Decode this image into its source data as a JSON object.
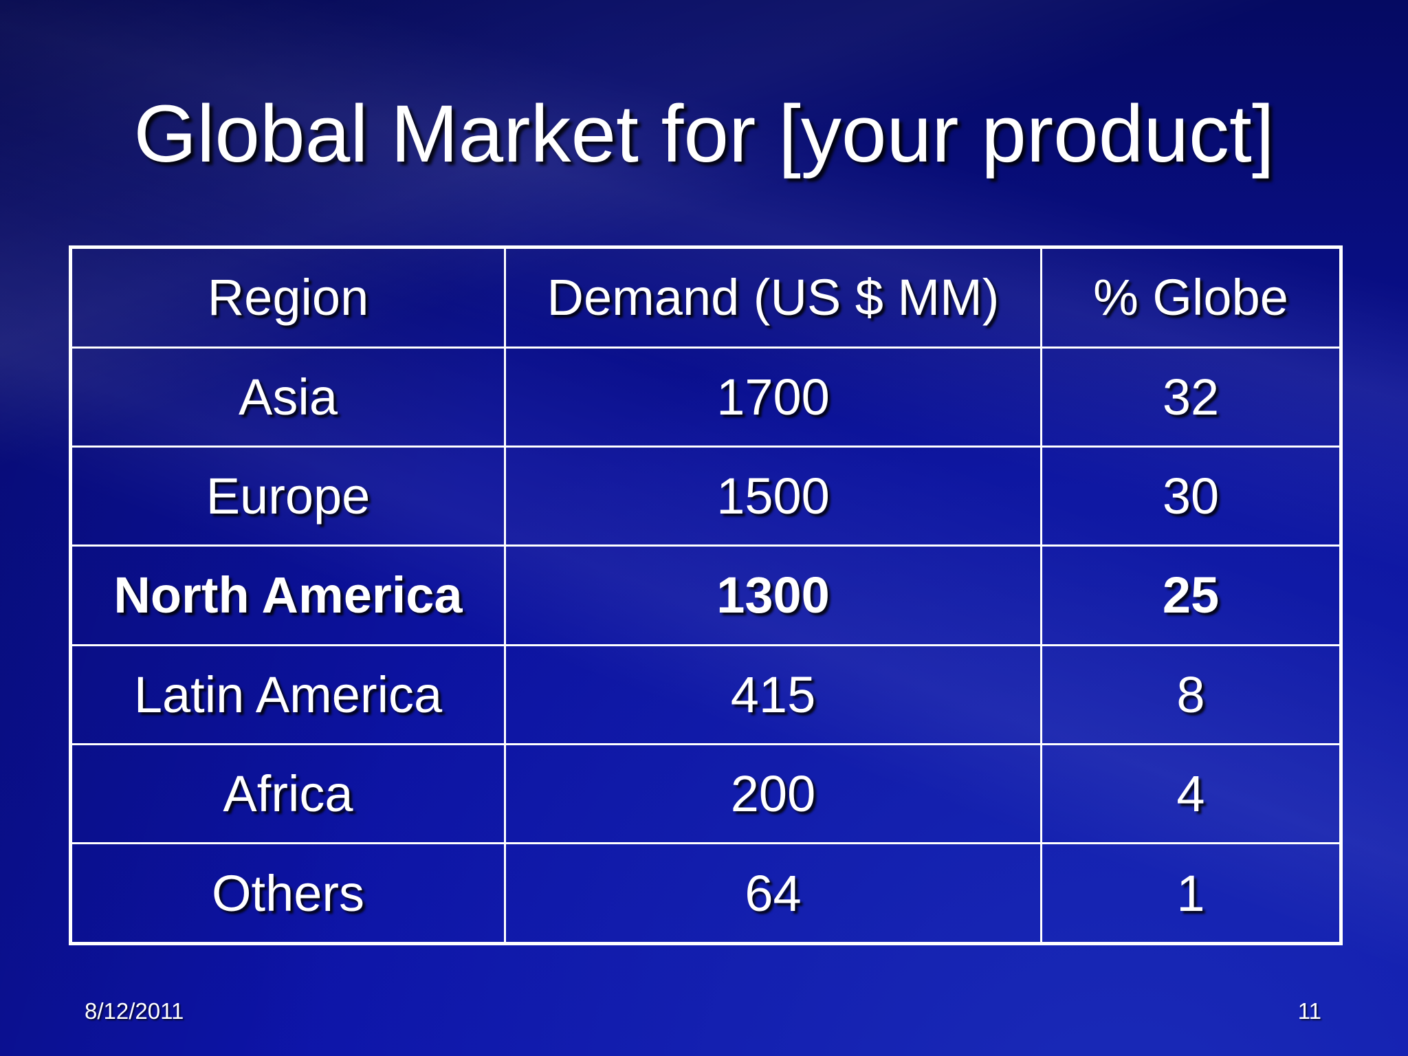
{
  "slide": {
    "title": "Global Market for [your product]",
    "date": "8/12/2011",
    "page_number": "11"
  },
  "table": {
    "headers": [
      "Region",
      "Demand (US $ MM)",
      "% Globe"
    ],
    "rows": [
      [
        "Asia",
        "1700",
        "32"
      ],
      [
        "Europe",
        "1500",
        "30"
      ],
      [
        "North America",
        "1300",
        "25"
      ],
      [
        "Latin America",
        "415",
        "8"
      ],
      [
        "Africa",
        "200",
        "4"
      ],
      [
        "Others",
        "64",
        "1"
      ]
    ],
    "highlighted_row": "North America"
  },
  "colors": {
    "background": "#0a0f8c",
    "text": "#ffffff",
    "grid": "#ffffff"
  }
}
